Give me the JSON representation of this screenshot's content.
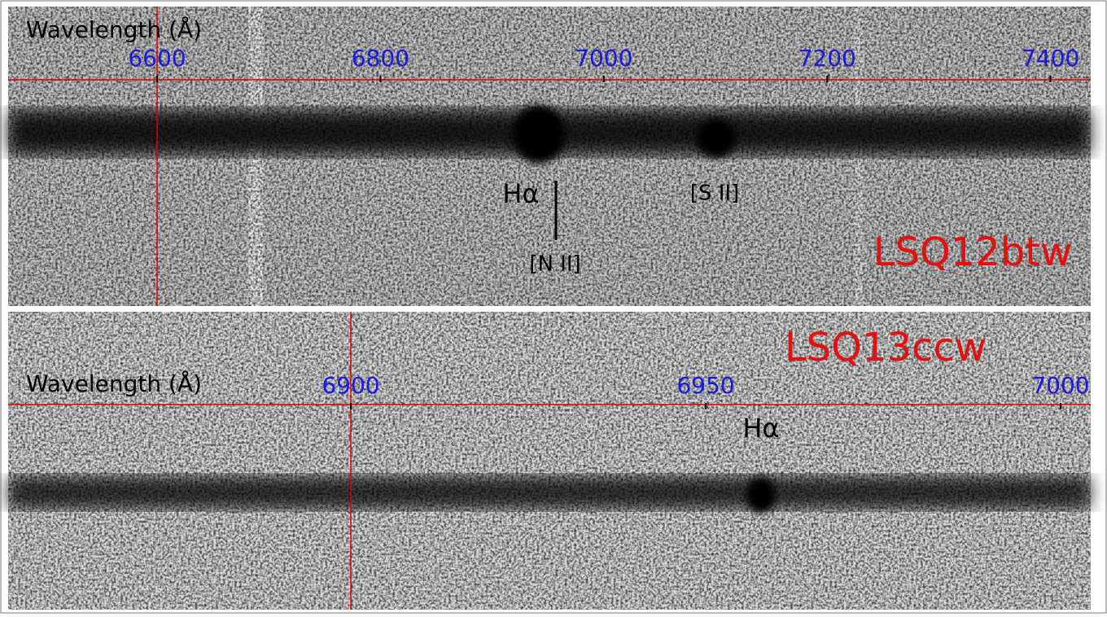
{
  "panels": [
    {
      "axis_label": "Wavelength (Å)",
      "ticks": [
        6600,
        6800,
        7000,
        7200,
        7400
      ],
      "object": "LSQ12btw",
      "lines": [
        "Hα",
        "[N II]",
        "[S II]"
      ]
    },
    {
      "axis_label": "Wavelength (Å)",
      "ticks": [
        6900,
        6950,
        7000
      ],
      "object": "LSQ13ccw",
      "lines": [
        "Hα"
      ]
    }
  ]
}
